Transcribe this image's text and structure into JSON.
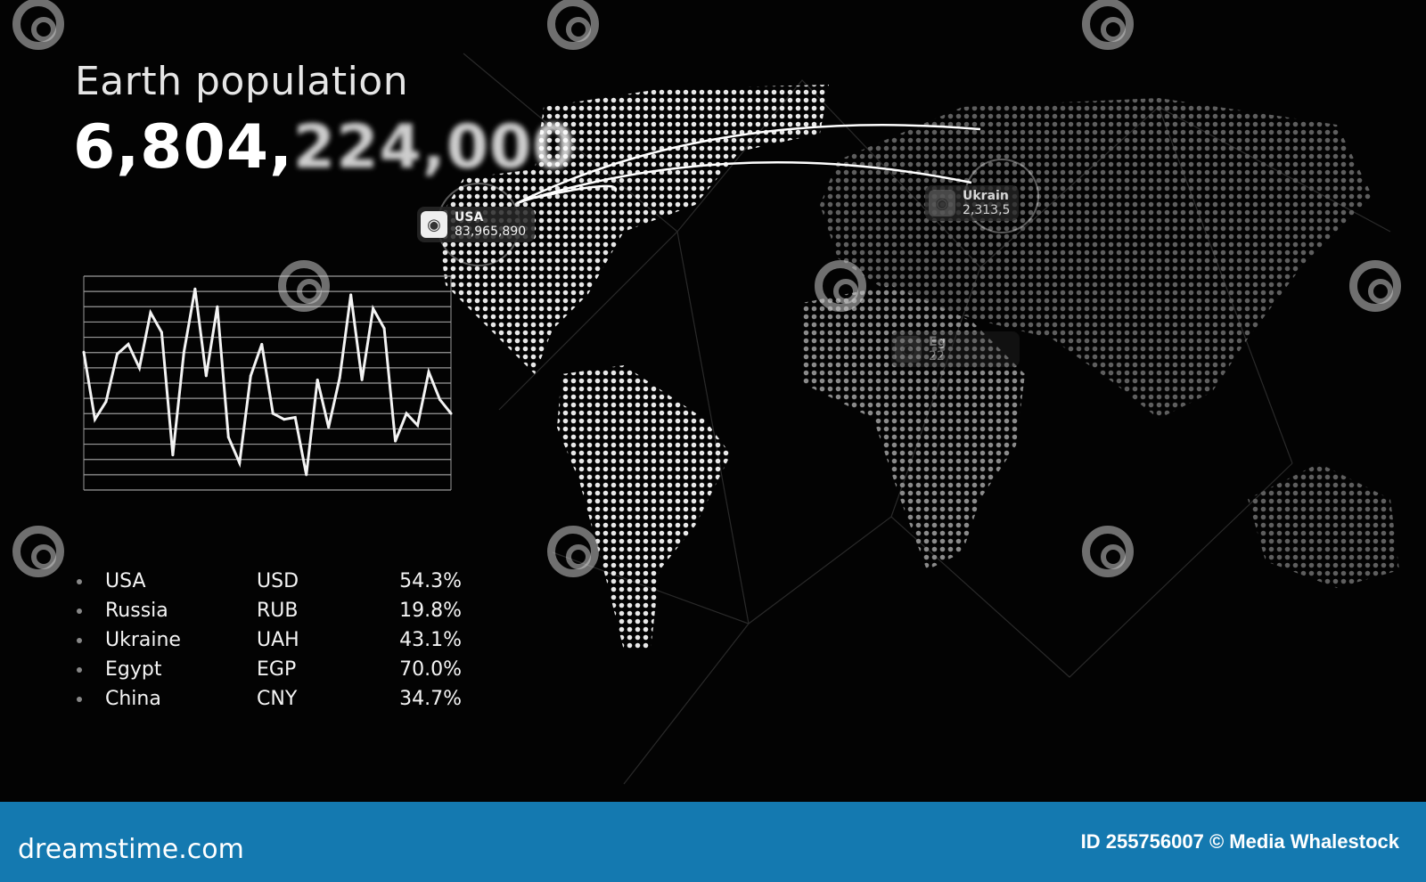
{
  "header": {
    "title": "Earth population",
    "counter_main": "6,804,",
    "counter_blurred": "224,000"
  },
  "map_labels": [
    {
      "name": "USA",
      "value": "83,965,890",
      "icon": "globe-icon"
    },
    {
      "name": "Ukrain",
      "value": "2,313,5",
      "icon": "globe-icon"
    },
    {
      "name": "Eg",
      "value": "22",
      "icon": "globe-icon"
    }
  ],
  "chart_data": {
    "type": "line",
    "title": "",
    "xlabel": "",
    "ylabel": "",
    "grid": true,
    "ylim": [
      0,
      100
    ],
    "values": [
      67,
      33,
      42,
      66,
      71,
      59,
      87,
      77,
      15,
      67,
      99,
      55,
      90,
      24,
      11,
      55,
      71,
      36,
      33,
      34,
      5,
      53,
      29,
      54,
      96,
      53,
      89,
      79,
      22,
      36,
      30,
      57,
      43,
      36
    ]
  },
  "table": {
    "rows": [
      {
        "country": "USA",
        "currency": "USD",
        "percent": "54.3%"
      },
      {
        "country": "Russia",
        "currency": "RUB",
        "percent": "19.8%"
      },
      {
        "country": "Ukraine",
        "currency": "UAH",
        "percent": "43.1%"
      },
      {
        "country": "Egypt",
        "currency": "EGP",
        "percent": "70.0%"
      },
      {
        "country": "China",
        "currency": "CNY",
        "percent": "34.7%"
      }
    ]
  },
  "footer": {
    "logo": "dreamstime.com",
    "credit": "ID 255756007 © Media Whalestock",
    "color": "#1479b0"
  }
}
